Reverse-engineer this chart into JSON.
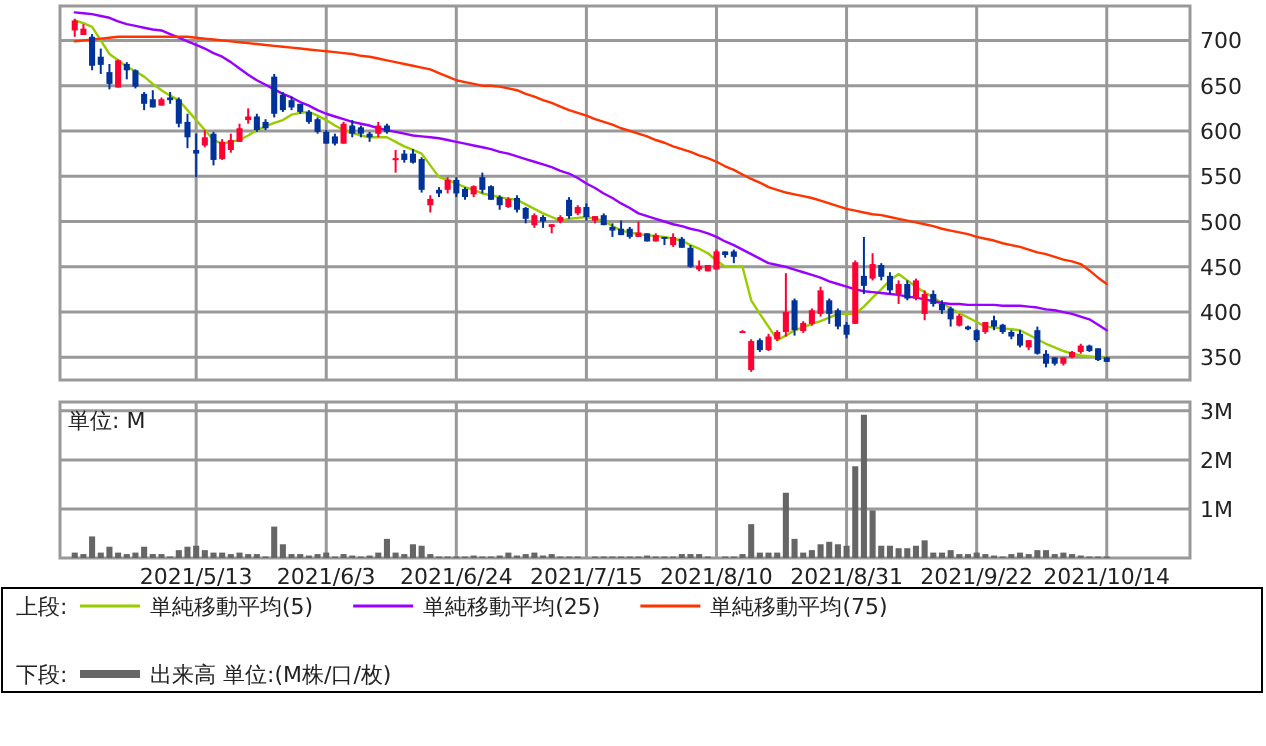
{
  "chart_data": [
    {
      "type": "candlestick",
      "categories": [
        null,
        null,
        null,
        null,
        null,
        null,
        null,
        null,
        null,
        null,
        null,
        null,
        null,
        null,
        "2021/5/13",
        null,
        null,
        null,
        null,
        null,
        null,
        null,
        null,
        null,
        null,
        null,
        null,
        null,
        null,
        "2021/6/3",
        null,
        null,
        null,
        null,
        null,
        null,
        null,
        null,
        null,
        null,
        null,
        null,
        null,
        null,
        "2021/6/24",
        null,
        null,
        null,
        null,
        null,
        null,
        null,
        null,
        null,
        null,
        null,
        null,
        null,
        null,
        "2021/7/15",
        null,
        null,
        null,
        null,
        null,
        null,
        null,
        null,
        null,
        null,
        null,
        null,
        null,
        null,
        "2021/8/10",
        null,
        null,
        null,
        null,
        null,
        null,
        null,
        null,
        null,
        null,
        null,
        null,
        null,
        null,
        "2021/8/31",
        null,
        null,
        null,
        null,
        null,
        null,
        null,
        null,
        null,
        null,
        null,
        null,
        null,
        null,
        "2021/9/22",
        null,
        null,
        null,
        null,
        null,
        null,
        null,
        null,
        null,
        null,
        null,
        null,
        null,
        null,
        "2021/10/14"
      ],
      "ohlc": [
        [
          711,
          724,
          704,
          722
        ],
        [
          706,
          718,
          706,
          713
        ],
        [
          704,
          707,
          667,
          672
        ],
        [
          682,
          691,
          663,
          673
        ],
        [
          665,
          674,
          646,
          652
        ],
        [
          648,
          679,
          648,
          678
        ],
        [
          674,
          676,
          657,
          667
        ],
        [
          667,
          668,
          647,
          649
        ],
        [
          641,
          643,
          623,
          630
        ],
        [
          635,
          645,
          626,
          626
        ],
        [
          628,
          637,
          628,
          635
        ],
        [
          637,
          643,
          630,
          634
        ],
        [
          635,
          637,
          604,
          608
        ],
        [
          610,
          619,
          581,
          593
        ],
        [
          579,
          597,
          549,
          575
        ],
        [
          584,
          601,
          582,
          593
        ],
        [
          597,
          599,
          562,
          568
        ],
        [
          569,
          591,
          568,
          588
        ],
        [
          579,
          597,
          576,
          590
        ],
        [
          588,
          608,
          588,
          603
        ],
        [
          612,
          625,
          608,
          616
        ],
        [
          616,
          619,
          599,
          601
        ],
        [
          610,
          613,
          601,
          603
        ],
        [
          660,
          663,
          615,
          619
        ],
        [
          640,
          643,
          621,
          623
        ],
        [
          634,
          638,
          623,
          626
        ],
        [
          630,
          630,
          619,
          621
        ],
        [
          621,
          623,
          608,
          610
        ],
        [
          613,
          615,
          597,
          599
        ],
        [
          599,
          601,
          586,
          586
        ],
        [
          594,
          597,
          584,
          586
        ],
        [
          586,
          610,
          586,
          608
        ],
        [
          606,
          612,
          593,
          597
        ],
        [
          604,
          606,
          593,
          597
        ],
        [
          597,
          599,
          588,
          593
        ],
        [
          597,
          610,
          593,
          606
        ],
        [
          606,
          608,
          597,
          599
        ],
        [
          568,
          579,
          554,
          570
        ],
        [
          575,
          579,
          565,
          568
        ],
        [
          575,
          580,
          564,
          565
        ],
        [
          569,
          571,
          532,
          535
        ],
        [
          518,
          529,
          510,
          525
        ],
        [
          535,
          538,
          527,
          531
        ],
        [
          535,
          549,
          531,
          546
        ],
        [
          546,
          549,
          527,
          531
        ],
        [
          536,
          538,
          524,
          527
        ],
        [
          530,
          540,
          527,
          539
        ],
        [
          549,
          554,
          531,
          535
        ],
        [
          539,
          540,
          524,
          524
        ],
        [
          527,
          529,
          513,
          518
        ],
        [
          516,
          527,
          515,
          525
        ],
        [
          526,
          529,
          510,
          513
        ],
        [
          515,
          516,
          498,
          503
        ],
        [
          496,
          509,
          493,
          507
        ],
        [
          505,
          507,
          493,
          500
        ],
        [
          494,
          497,
          487,
          497
        ],
        [
          500,
          507,
          498,
          505
        ],
        [
          524,
          527,
          503,
          506
        ],
        [
          509,
          518,
          507,
          516
        ],
        [
          516,
          520,
          501,
          505
        ],
        [
          501,
          506,
          498,
          506
        ],
        [
          507,
          509,
          496,
          496
        ],
        [
          494,
          498,
          483,
          490
        ],
        [
          492,
          501,
          485,
          485
        ],
        [
          492,
          494,
          481,
          483
        ],
        [
          483,
          500,
          483,
          488
        ],
        [
          487,
          487,
          478,
          478
        ],
        [
          478,
          487,
          478,
          485
        ],
        [
          483,
          483,
          474,
          481
        ],
        [
          474,
          487,
          472,
          483
        ],
        [
          481,
          483,
          471,
          471
        ],
        [
          471,
          474,
          449,
          450
        ],
        [
          447,
          457,
          445,
          451
        ],
        [
          445,
          452,
          445,
          452
        ],
        [
          447,
          469,
          447,
          467
        ],
        [
          467,
          467,
          460,
          463
        ],
        [
          467,
          469,
          454,
          461
        ],
        [
          379,
          380,
          378,
          379
        ],
        [
          336,
          370,
          334,
          368
        ],
        [
          369,
          371,
          356,
          358
        ],
        [
          358,
          376,
          357,
          373
        ],
        [
          370,
          380,
          368,
          378
        ],
        [
          378,
          443,
          373,
          400
        ],
        [
          413,
          415,
          374,
          380
        ],
        [
          379,
          390,
          377,
          388
        ],
        [
          387,
          404,
          385,
          402
        ],
        [
          398,
          428,
          395,
          424
        ],
        [
          413,
          415,
          387,
          398
        ],
        [
          402,
          404,
          381,
          384
        ],
        [
          386,
          389,
          371,
          375
        ],
        [
          387,
          457,
          387,
          455
        ],
        [
          440,
          483,
          420,
          429
        ],
        [
          437,
          465,
          435,
          453
        ],
        [
          452,
          454,
          435,
          439
        ],
        [
          440,
          444,
          420,
          424
        ],
        [
          420,
          435,
          409,
          431
        ],
        [
          431,
          435,
          413,
          415
        ],
        [
          415,
          437,
          413,
          435
        ],
        [
          398,
          424,
          391,
          420
        ],
        [
          420,
          424,
          406,
          409
        ],
        [
          409,
          413,
          398,
          402
        ],
        [
          404,
          406,
          384,
          392
        ],
        [
          385,
          398,
          384,
          396
        ],
        [
          384,
          385,
          380,
          381
        ],
        [
          380,
          381,
          367,
          369
        ],
        [
          378,
          389,
          376,
          389
        ],
        [
          391,
          396,
          380,
          384
        ],
        [
          386,
          387,
          376,
          378
        ],
        [
          378,
          380,
          370,
          373
        ],
        [
          376,
          380,
          361,
          363
        ],
        [
          361,
          369,
          358,
          369
        ],
        [
          380,
          384,
          353,
          354
        ],
        [
          354,
          358,
          339,
          343
        ],
        [
          350,
          350,
          341,
          343
        ],
        [
          343,
          350,
          341,
          350
        ],
        [
          350,
          357,
          349,
          356
        ],
        [
          356,
          365,
          354,
          363
        ],
        [
          363,
          364,
          356,
          357
        ],
        [
          360,
          360,
          346,
          347
        ],
        [
          350,
          351,
          345,
          345
        ]
      ],
      "series": [
        {
          "name": "単純移動平均(5)",
          "type": "line",
          "color": "#99cc00",
          "values": [
            722,
            719,
            715,
            700,
            685,
            678,
            671,
            666,
            660,
            652,
            645,
            639,
            634,
            623,
            612,
            601,
            590,
            586,
            588,
            590,
            595,
            601,
            605,
            609,
            612,
            618,
            620,
            621,
            617,
            612,
            606,
            601,
            598,
            595,
            593,
            593,
            593,
            588,
            583,
            579,
            575,
            562,
            549,
            546,
            542,
            538,
            535,
            531,
            529,
            527,
            525,
            524,
            519,
            514,
            509,
            505,
            501,
            503,
            504,
            505,
            503,
            501,
            495,
            490,
            488,
            486,
            485,
            484,
            483,
            481,
            479,
            474,
            470,
            465,
            457,
            450,
            450,
            450,
            413,
            398,
            384,
            369,
            374,
            380,
            383,
            387,
            390,
            394,
            398,
            398,
            398,
            406,
            416,
            425,
            435,
            442,
            435,
            428,
            422,
            416,
            410,
            404,
            399,
            394,
            389,
            384,
            383,
            382,
            381,
            380,
            375,
            370,
            365,
            361,
            357,
            354,
            352,
            351,
            350,
            350
          ]
        },
        {
          "name": "単純移動平均(25)",
          "type": "line",
          "color": "#9900ff",
          "values": [
            731,
            730,
            729,
            727,
            725,
            721,
            718,
            716,
            714,
            712,
            711,
            707,
            703,
            699,
            695,
            691,
            686,
            682,
            676,
            669,
            662,
            656,
            651,
            646,
            641,
            637,
            632,
            628,
            623,
            619,
            616,
            613,
            610,
            608,
            606,
            603,
            601,
            599,
            597,
            595,
            594,
            593,
            592,
            590,
            588,
            586,
            584,
            582,
            580,
            577,
            575,
            572,
            569,
            566,
            563,
            560,
            556,
            553,
            548,
            542,
            537,
            531,
            526,
            520,
            515,
            509,
            506,
            503,
            500,
            497,
            495,
            492,
            490,
            487,
            483,
            478,
            474,
            469,
            464,
            459,
            454,
            452,
            450,
            447,
            444,
            441,
            438,
            434,
            431,
            428,
            425,
            423,
            422,
            421,
            420,
            419,
            417,
            416,
            414,
            412,
            410,
            409,
            409,
            408,
            408,
            408,
            408,
            407,
            407,
            407,
            406,
            405,
            403,
            402,
            400,
            398,
            395,
            392,
            386,
            380
          ]
        },
        {
          "name": "単純移動平均(75)",
          "type": "line",
          "color": "#ff3300",
          "values": [
            699,
            700,
            701,
            702,
            703,
            704,
            704,
            704,
            704,
            704,
            704,
            704,
            704,
            704,
            703,
            702,
            701,
            700,
            699,
            698,
            697,
            696,
            695,
            694,
            693,
            692,
            691,
            690,
            689,
            688,
            687,
            686,
            685,
            683,
            682,
            680,
            678,
            676,
            674,
            672,
            670,
            668,
            664,
            660,
            656,
            654,
            652,
            650,
            650,
            649,
            647,
            645,
            641,
            638,
            634,
            631,
            627,
            623,
            620,
            617,
            613,
            610,
            607,
            603,
            600,
            597,
            594,
            590,
            587,
            583,
            580,
            577,
            573,
            570,
            566,
            561,
            557,
            552,
            547,
            543,
            538,
            535,
            532,
            530,
            528,
            526,
            523,
            520,
            517,
            514,
            512,
            510,
            508,
            507,
            505,
            503,
            501,
            499,
            497,
            495,
            492,
            490,
            488,
            486,
            483,
            481,
            479,
            476,
            474,
            472,
            469,
            466,
            464,
            461,
            458,
            456,
            453,
            446,
            438,
            431
          ]
        }
      ],
      "ylim": [
        325,
        738
      ],
      "yticks": [
        350,
        400,
        450,
        500,
        550,
        600,
        650,
        700
      ],
      "grid": true,
      "legend": "bottom",
      "legend_title": "上段:",
      "tick_labels": "y"
    },
    {
      "type": "bar",
      "categories": [
        null,
        null,
        null,
        null,
        null,
        null,
        null,
        null,
        null,
        null,
        null,
        null,
        null,
        null,
        "2021/5/13",
        null,
        null,
        null,
        null,
        null,
        null,
        null,
        null,
        null,
        null,
        null,
        null,
        null,
        null,
        "2021/6/3",
        null,
        null,
        null,
        null,
        null,
        null,
        null,
        null,
        null,
        null,
        null,
        null,
        null,
        null,
        "2021/6/24",
        null,
        null,
        null,
        null,
        null,
        null,
        null,
        null,
        null,
        null,
        null,
        null,
        null,
        null,
        "2021/7/15",
        null,
        null,
        null,
        null,
        null,
        null,
        null,
        null,
        null,
        null,
        null,
        null,
        null,
        null,
        "2021/8/10",
        null,
        null,
        null,
        null,
        null,
        null,
        null,
        null,
        null,
        null,
        null,
        null,
        null,
        null,
        "2021/8/31",
        null,
        null,
        null,
        null,
        null,
        null,
        null,
        null,
        null,
        null,
        null,
        null,
        null,
        null,
        "2021/9/22",
        null,
        null,
        null,
        null,
        null,
        null,
        null,
        null,
        null,
        null,
        null,
        null,
        null,
        null,
        "2021/10/14"
      ],
      "series": [
        {
          "name": "出来高 単位:(M株/口/枚)",
          "color": "#666666",
          "values": [
            0.11,
            0.08,
            0.44,
            0.11,
            0.23,
            0.11,
            0.08,
            0.11,
            0.23,
            0.08,
            0.08,
            0.03,
            0.16,
            0.23,
            0.25,
            0.16,
            0.11,
            0.11,
            0.08,
            0.11,
            0.08,
            0.08,
            0.03,
            0.64,
            0.28,
            0.08,
            0.08,
            0.05,
            0.08,
            0.11,
            0.03,
            0.08,
            0.05,
            0.03,
            0.05,
            0.11,
            0.39,
            0.11,
            0.08,
            0.28,
            0.25,
            0.08,
            0.03,
            0.03,
            0.03,
            0.03,
            0.05,
            0.03,
            0.03,
            0.05,
            0.11,
            0.05,
            0.08,
            0.11,
            0.05,
            0.08,
            0.03,
            0.03,
            0.03,
            null,
            0.03,
            0.03,
            0.03,
            0.03,
            0.03,
            0.03,
            0.05,
            0.03,
            0.03,
            0.03,
            0.08,
            0.08,
            0.08,
            0.03,
            null,
            0.03,
            0.03,
            0.08,
            0.69,
            0.11,
            0.11,
            0.11,
            1.33,
            0.39,
            0.11,
            0.16,
            0.28,
            0.33,
            0.28,
            0.25,
            1.87,
            2.92,
            0.97,
            0.25,
            0.25,
            0.2,
            0.2,
            0.25,
            0.36,
            0.11,
            0.11,
            0.16,
            0.08,
            0.08,
            0.11,
            0.08,
            0.05,
            0.03,
            0.08,
            0.11,
            0.08,
            0.16,
            0.16,
            0.08,
            0.11,
            0.08,
            0.05,
            0.03,
            0.03,
            0.03
          ]
        }
      ],
      "ylim": [
        0,
        3.18
      ],
      "yticks": [
        {
          "value": 1,
          "label": "1M"
        },
        {
          "value": 2,
          "label": "2M"
        },
        {
          "value": 3,
          "label": "3M"
        }
      ],
      "grid": true,
      "legend": "bottom",
      "legend_title": "下段:",
      "annotations": [
        "単位: M"
      ]
    }
  ]
}
